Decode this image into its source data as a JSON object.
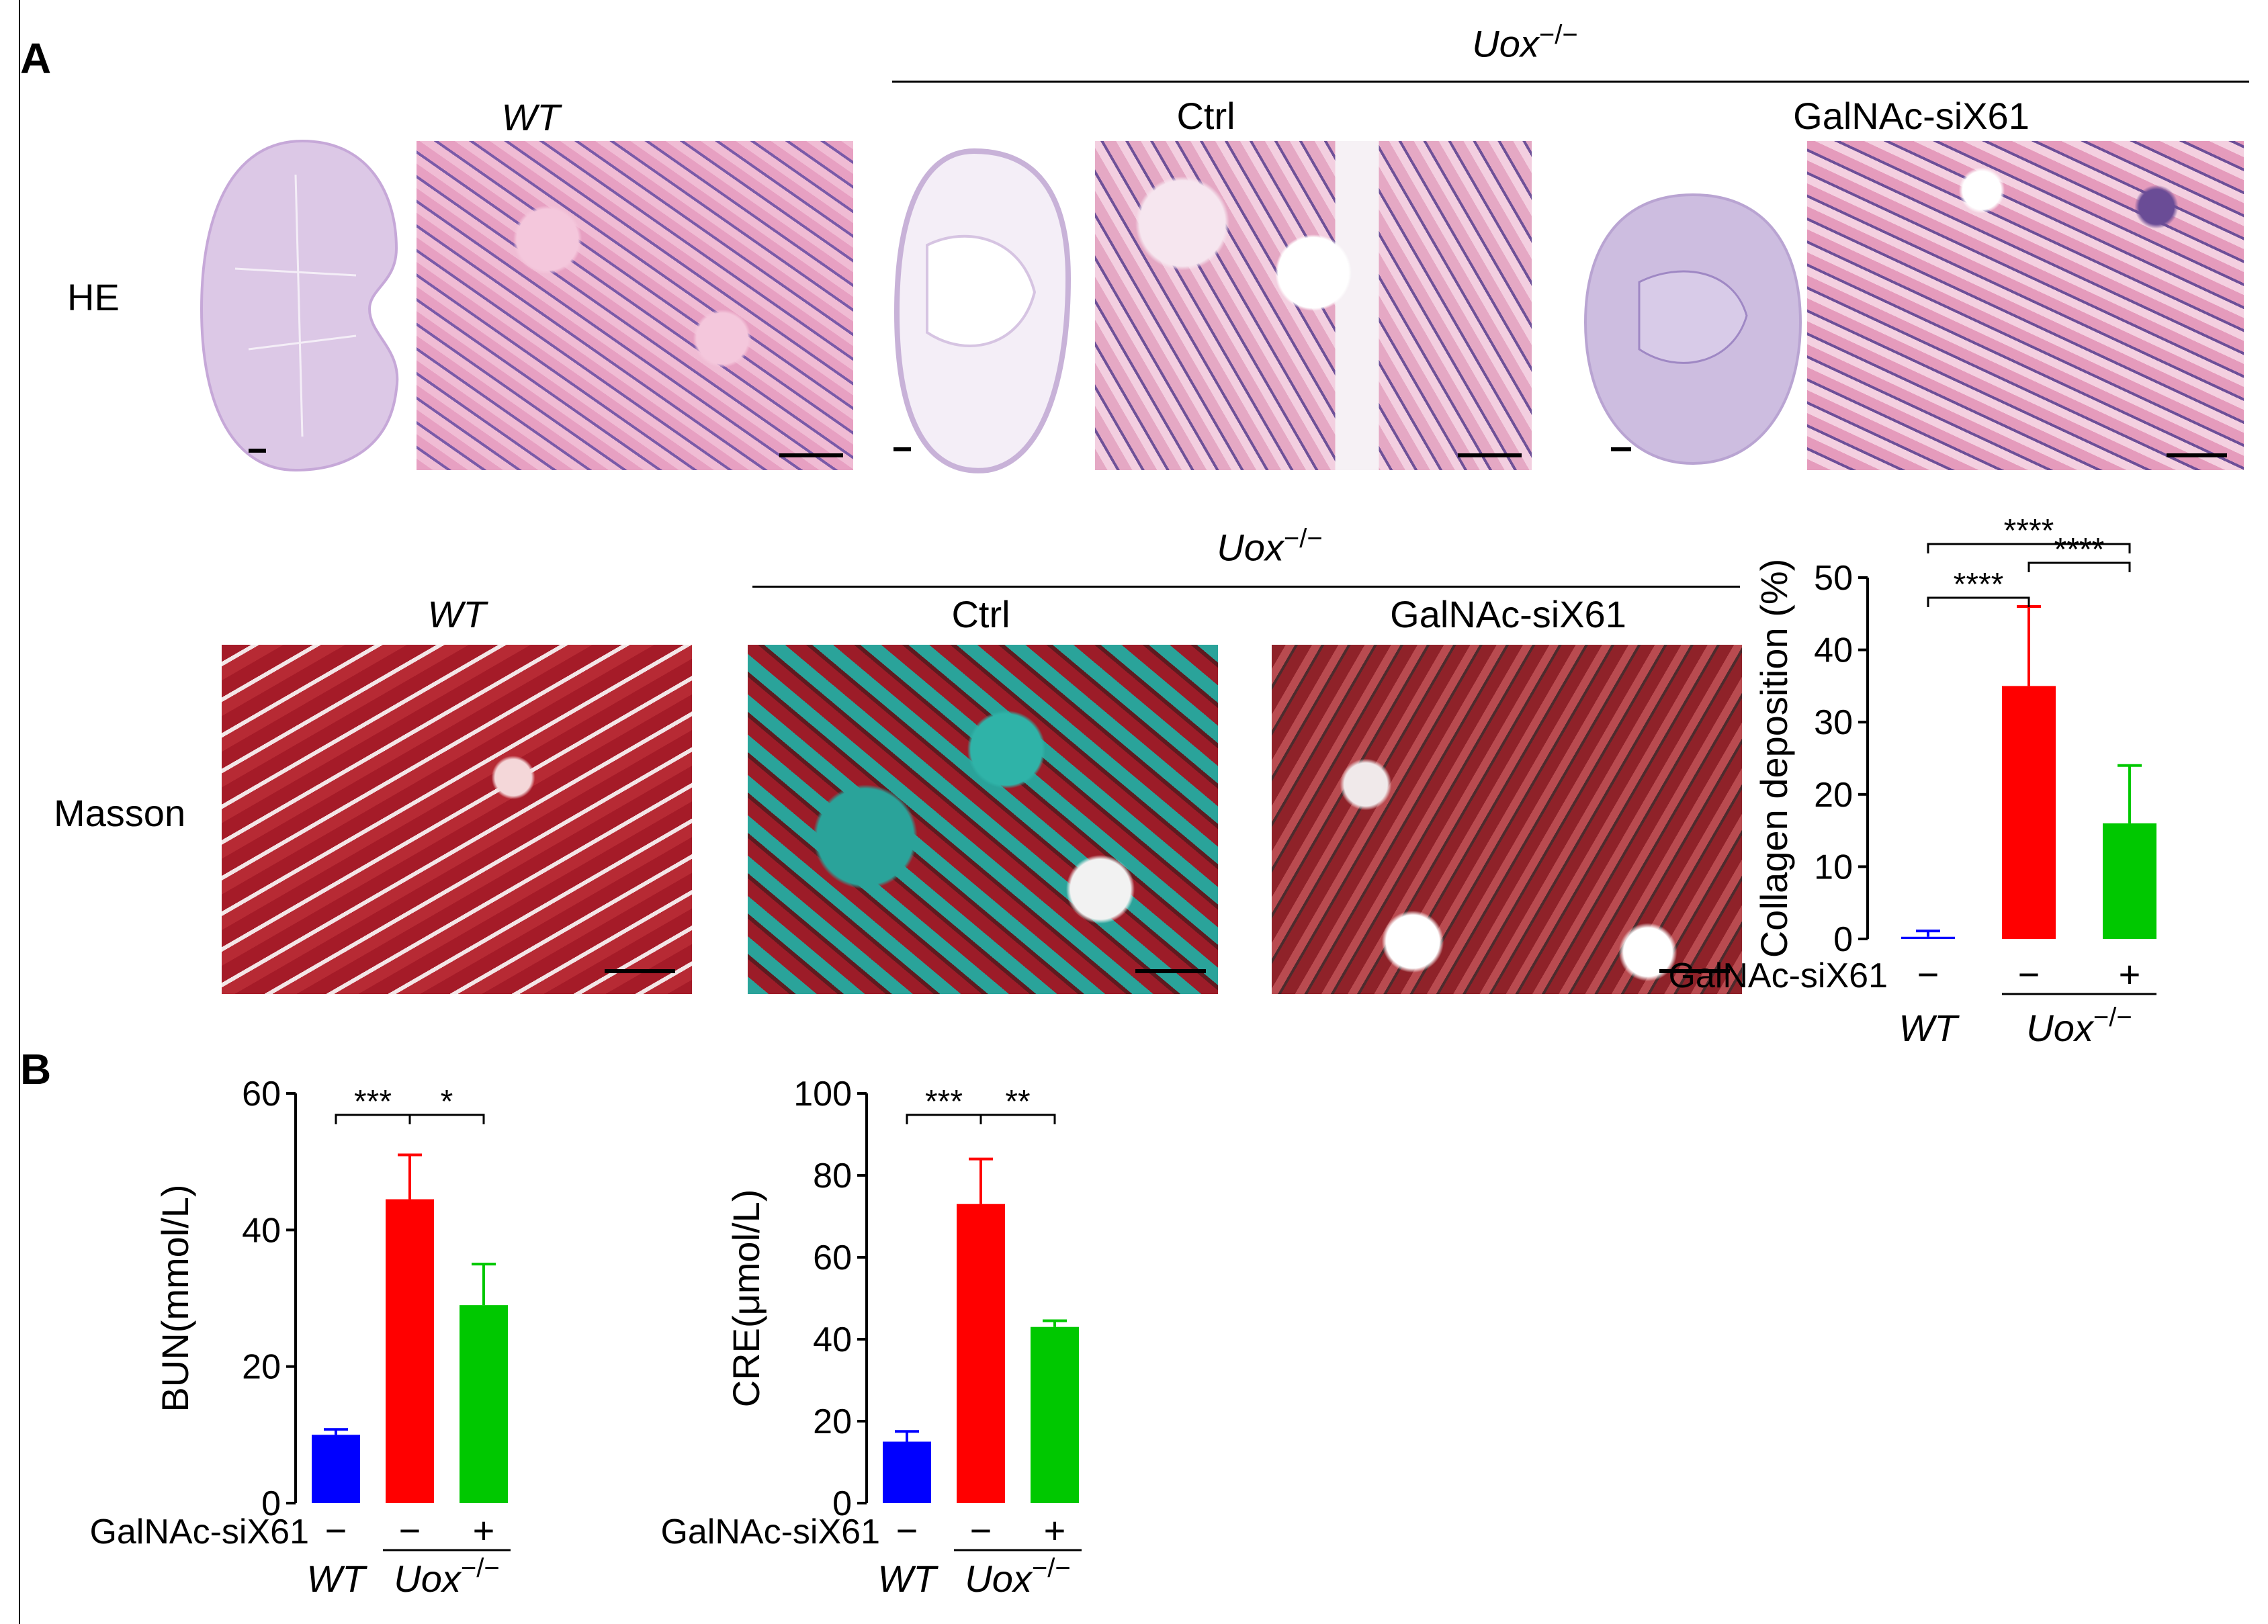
{
  "panel_a": {
    "letter": "A",
    "he": {
      "row_label": "HE",
      "wt_title": "WT",
      "group_title": "Uox",
      "group_sup": "−/−",
      "ctrl_title": "Ctrl",
      "treat_title": "GalNAc-siX61"
    },
    "masson": {
      "row_label": "Masson",
      "wt_title": "WT",
      "group_title": "Uox",
      "group_sup": "−/−",
      "ctrl_title": "Ctrl",
      "treat_title": "GalNAc-siX61"
    },
    "colors": {
      "he_pink": "#e9a7c6",
      "he_purple": "#5a3f8e",
      "whole_kidney": "#d9c6e4",
      "masson_red": "#a81d2a",
      "collagen_teal": "#2aa39a"
    }
  },
  "panel_b": {
    "letter": "B"
  },
  "chart_data": [
    {
      "type": "bar",
      "title": "",
      "ylabel": "Collagen deposition (%)",
      "ylim": [
        0,
        50
      ],
      "yticks": [
        "0",
        "10",
        "20",
        "30",
        "40",
        "50"
      ],
      "treatment_label": "GalNAc-siX61",
      "categories": [
        "WT",
        "Uox−/− Ctrl",
        "Uox−/− GalNAc-siX61"
      ],
      "treatment_marks": [
        "−",
        "−",
        "+"
      ],
      "values": [
        0.3,
        35,
        16
      ],
      "errors": [
        0.8,
        11,
        8
      ],
      "colors": [
        "#0000ff",
        "#ff0000",
        "#00c800"
      ],
      "group_labels": {
        "wt": "WT",
        "ko": "Uox",
        "ko_sup": "−/−"
      },
      "significance": [
        {
          "from": 0,
          "to": 1,
          "label": "****"
        },
        {
          "from": 1,
          "to": 2,
          "label": "****"
        },
        {
          "from": 0,
          "to": 2,
          "label": "****"
        }
      ]
    },
    {
      "type": "bar",
      "title": "",
      "ylabel": "BUN(mmol/L)",
      "ylim": [
        0,
        60
      ],
      "yticks": [
        "0",
        "20",
        "40",
        "60"
      ],
      "treatment_label": "GalNAc-siX61",
      "categories": [
        "WT",
        "Uox−/− Ctrl",
        "Uox−/− GalNAc-siX61"
      ],
      "treatment_marks": [
        "−",
        "−",
        "+"
      ],
      "values": [
        10,
        44.5,
        29
      ],
      "errors": [
        0.8,
        6.5,
        6
      ],
      "colors": [
        "#0000ff",
        "#ff0000",
        "#00c800"
      ],
      "group_labels": {
        "wt": "WT",
        "ko": "Uox",
        "ko_sup": "−/−"
      },
      "significance": [
        {
          "from": 0,
          "to": 1,
          "label": "***"
        },
        {
          "from": 1,
          "to": 2,
          "label": "*"
        }
      ]
    },
    {
      "type": "bar",
      "title": "",
      "ylabel": "CRE(μmol/L)",
      "ylim": [
        0,
        100
      ],
      "yticks": [
        "0",
        "20",
        "40",
        "60",
        "80",
        "100"
      ],
      "treatment_label": "GalNAc-siX61",
      "categories": [
        "WT",
        "Uox−/− Ctrl",
        "Uox−/− GalNAc-siX61"
      ],
      "treatment_marks": [
        "−",
        "−",
        "+"
      ],
      "values": [
        15,
        73,
        43
      ],
      "errors": [
        2.5,
        11,
        1.5
      ],
      "colors": [
        "#0000ff",
        "#ff0000",
        "#00c800"
      ],
      "group_labels": {
        "wt": "WT",
        "ko": "Uox",
        "ko_sup": "−/−"
      },
      "significance": [
        {
          "from": 0,
          "to": 1,
          "label": "***"
        },
        {
          "from": 1,
          "to": 2,
          "label": "**"
        }
      ]
    }
  ]
}
